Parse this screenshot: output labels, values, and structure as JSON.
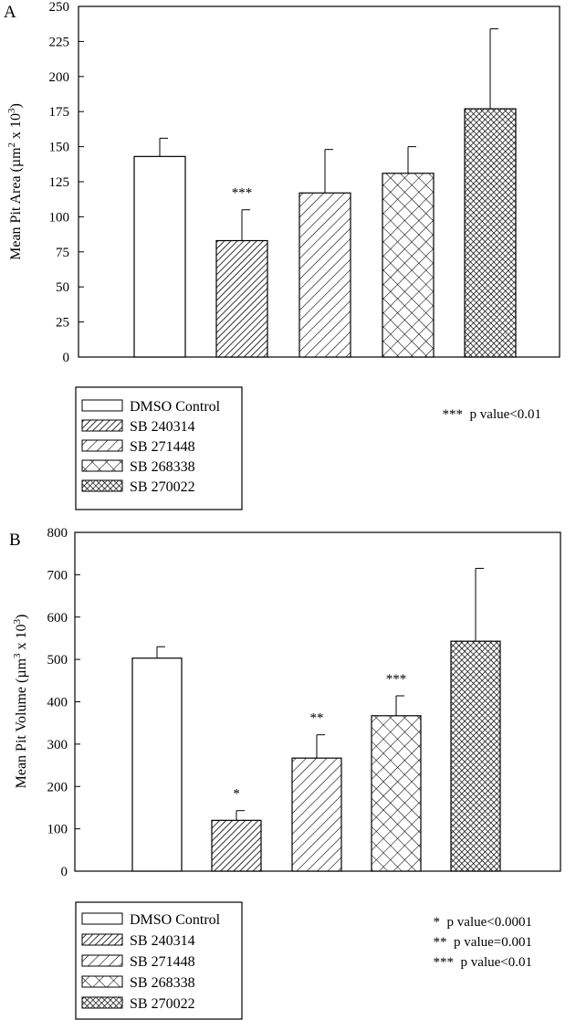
{
  "chart_data": [
    {
      "panel_label": "A",
      "type": "bar",
      "categories": [
        "DMSO Control",
        "SB 240314",
        "SB 271448",
        "SB 268338",
        "SB 270022"
      ],
      "values": [
        143,
        83,
        117,
        131,
        177
      ],
      "errors": [
        13,
        22,
        31,
        19,
        57
      ],
      "significance": [
        "",
        "***",
        "",
        "",
        ""
      ],
      "ylabel": "Mean Pit Area (µm² x 10³)",
      "ylabel_parts": {
        "pre": "Mean Pit Area (",
        "mu": "µ",
        "m": "m",
        "exp1": "2",
        "mid": " x 10",
        "exp2": "3",
        "post": ")"
      },
      "ylim": [
        0,
        250
      ],
      "yticks": [
        0,
        25,
        50,
        75,
        100,
        125,
        150,
        175,
        200,
        225,
        250
      ],
      "yticklabels": [
        "0",
        "25",
        "50",
        "75",
        "100",
        "125",
        "150",
        "175",
        "200",
        "225",
        "250"
      ],
      "legend": [
        "DMSO Control",
        "SB 240314",
        "SB 271448",
        "SB 268338",
        "SB 270022"
      ],
      "notes": [
        "***  p value<0.01"
      ]
    },
    {
      "panel_label": "B",
      "type": "bar",
      "categories": [
        "DMSO Control",
        "SB 240314",
        "SB 271448",
        "SB 268338",
        "SB 270022"
      ],
      "values": [
        503,
        120,
        267,
        367,
        543
      ],
      "errors": [
        27,
        23,
        55,
        47,
        172
      ],
      "significance": [
        "",
        "*",
        "**",
        "***",
        ""
      ],
      "ylabel": "Mean Pit Volume (µm³ x 10³)",
      "ylabel_parts": {
        "pre": "Mean Pit Volume (",
        "mu": "µ",
        "m": "m",
        "exp1": "3",
        "mid": " x 10",
        "exp2": "3",
        "post": ")"
      },
      "ylim": [
        0,
        800
      ],
      "yticks": [
        0,
        100,
        200,
        300,
        400,
        500,
        600,
        700,
        800
      ],
      "yticklabels": [
        "0",
        "100",
        "200",
        "300",
        "400",
        "500",
        "600",
        "700",
        "800"
      ],
      "legend": [
        "DMSO Control",
        "SB 240314",
        "SB 271448",
        "SB 268338",
        "SB 270022"
      ],
      "notes": [
        "*  p value<0.0001",
        "**  p value=0.001",
        "***  p value<0.01"
      ]
    }
  ],
  "patterns": [
    "none-icon",
    "dense-diagonal-hatch-icon",
    "diagonal-hatch-icon",
    "crosshatch-icon",
    "dense-crosshatch-icon"
  ]
}
